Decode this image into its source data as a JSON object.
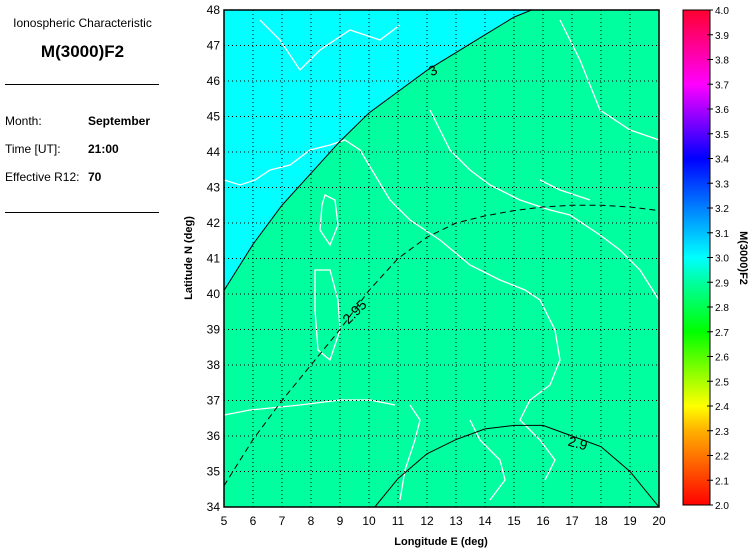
{
  "panel": {
    "subtitle": "Ionospheric Characteristic",
    "title": "M(3000)F2",
    "rows": [
      {
        "label": "Month:",
        "value": "September"
      },
      {
        "label": "Time [UT]:",
        "value": "21:00"
      },
      {
        "label": "Effective R12:",
        "value": "70"
      }
    ]
  },
  "chart_data": {
    "type": "contour-map",
    "xlabel": "Longitude E (deg)",
    "ylabel": "Latitude N (deg)",
    "xlim": [
      5,
      20
    ],
    "ylim": [
      34,
      48
    ],
    "xticks": [
      "5",
      "6",
      "7",
      "8",
      "9",
      "10",
      "11",
      "12",
      "13",
      "14",
      "15",
      "16",
      "17",
      "18",
      "19",
      "20"
    ],
    "yticks": [
      "34",
      "35",
      "36",
      "37",
      "38",
      "39",
      "40",
      "41",
      "42",
      "43",
      "44",
      "45",
      "46",
      "47",
      "48"
    ],
    "grid": true,
    "colorbar": {
      "label": "M(3000)F2",
      "range": [
        2.0,
        4.0
      ],
      "ticks": [
        "2.0",
        "2.1",
        "2.2",
        "2.3",
        "2.4",
        "2.5",
        "2.6",
        "2.7",
        "2.8",
        "2.9",
        "3.0",
        "3.1",
        "3.2",
        "3.3",
        "3.4",
        "3.5",
        "3.6",
        "3.7",
        "3.8",
        "3.9",
        "4.0"
      ],
      "colors": {
        "2.0": "#ff0000",
        "2.3": "#ffb000",
        "2.4": "#ffff00",
        "2.7": "#00ff00",
        "2.9": "#00ff9f",
        "3.0": "#00ffff",
        "3.2": "#0080ff",
        "3.4": "#0000ff",
        "3.7": "#ff00ff",
        "4.0": "#ff0030"
      }
    },
    "fill_colors": {
      "above_3.0": "#00ffff",
      "2.9_to_3.0": "#00ff9f"
    },
    "contours": [
      {
        "label": "3",
        "style": "solid",
        "label_at": [
          12.2,
          46.3
        ],
        "points": [
          [
            5,
            40.1
          ],
          [
            6,
            41.4
          ],
          [
            7,
            42.5
          ],
          [
            8,
            43.4
          ],
          [
            9,
            44.3
          ],
          [
            10,
            45.1
          ],
          [
            11,
            45.7
          ],
          [
            12,
            46.3
          ],
          [
            13,
            46.8
          ],
          [
            14,
            47.3
          ],
          [
            15,
            47.8
          ],
          [
            15.6,
            48
          ]
        ]
      },
      {
        "label": "2.95",
        "style": "dashed",
        "label_at": [
          9.5,
          39.5
        ],
        "points": [
          [
            5,
            34.6
          ],
          [
            6,
            35.9
          ],
          [
            7,
            37
          ],
          [
            8,
            38
          ],
          [
            9,
            39
          ],
          [
            10,
            40.1
          ],
          [
            11,
            41
          ],
          [
            12,
            41.6
          ],
          [
            13,
            42
          ],
          [
            14,
            42.2
          ],
          [
            15,
            42.35
          ],
          [
            16,
            42.45
          ],
          [
            17,
            42.5
          ],
          [
            18,
            42.5
          ],
          [
            19,
            42.45
          ],
          [
            20,
            42.35
          ]
        ]
      },
      {
        "label": "2.9",
        "style": "solid",
        "label_at": [
          17.2,
          35.8
        ],
        "points": [
          [
            10.2,
            34
          ],
          [
            11,
            34.8
          ],
          [
            12,
            35.5
          ],
          [
            13,
            35.9
          ],
          [
            14,
            36.2
          ],
          [
            15,
            36.3
          ],
          [
            16,
            36.3
          ],
          [
            17,
            36.0
          ],
          [
            18,
            35.7
          ],
          [
            19,
            35
          ],
          [
            20,
            34
          ]
        ]
      }
    ]
  }
}
